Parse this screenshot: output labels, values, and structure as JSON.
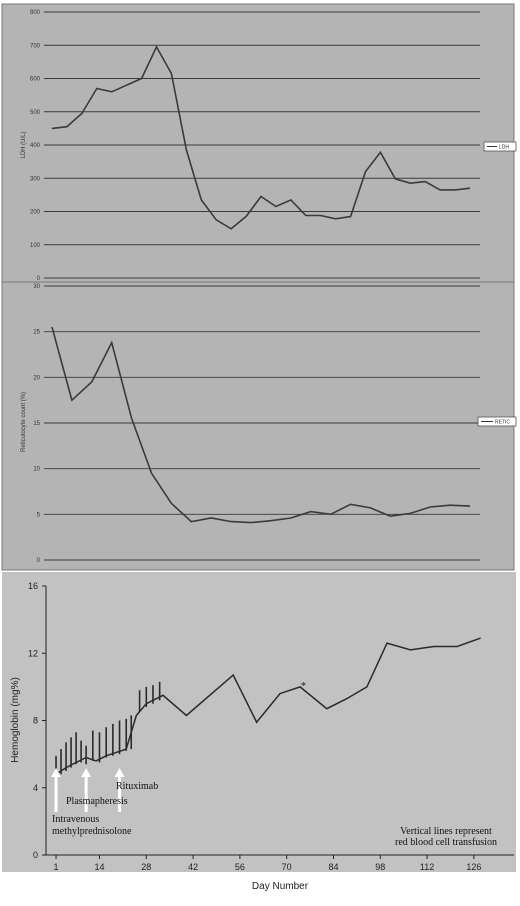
{
  "chart_data": [
    {
      "type": "line",
      "ylabel": "LDH (U/L)",
      "ylim": [
        0,
        800
      ],
      "yticks": [
        "0",
        "100",
        "200",
        "300",
        "400",
        "500",
        "600",
        "700",
        "800"
      ],
      "grid": true,
      "legend": "right",
      "series": [
        {
          "name": "LDH",
          "values": [
            450,
            455,
            495,
            570,
            560,
            580,
            600,
            695,
            615,
            385,
            235,
            175,
            148,
            185,
            245,
            215,
            235,
            188,
            188,
            178,
            185,
            320,
            378,
            298,
            285,
            290,
            265,
            265,
            270
          ]
        }
      ]
    },
    {
      "type": "line",
      "ylabel": "Reticulocyte count (%)",
      "ylim": [
        0,
        30
      ],
      "yticks": [
        "0",
        "5",
        "10",
        "15",
        "20",
        "25",
        "30"
      ],
      "grid": true,
      "legend": "right",
      "series": [
        {
          "name": "RETIC",
          "values": [
            25.5,
            17.5,
            19.5,
            23.8,
            15.5,
            9.5,
            6.2,
            4.2,
            4.6,
            4.2,
            4.1,
            4.3,
            4.6,
            5.3,
            5.0,
            6.1,
            5.7,
            4.8,
            5.1,
            5.8,
            6.0,
            5.9
          ]
        }
      ]
    },
    {
      "type": "line",
      "xlabel": "Day Number",
      "ylabel": "Hemoglobin (mg%)",
      "ylim": [
        0,
        16
      ],
      "yticks": [
        "0",
        "4",
        "8",
        "12",
        "16"
      ],
      "xticks": [
        "1",
        "14",
        "28",
        "42",
        "56",
        "70",
        "84",
        "98",
        "112",
        "126"
      ],
      "xlim": [
        -2,
        138
      ],
      "grid": false,
      "series": [
        {
          "x": [
            1,
            4,
            7,
            10,
            13,
            16,
            19,
            22,
            25,
            28,
            33,
            40,
            54,
            61,
            68,
            74,
            82,
            88,
            94,
            100,
            107,
            114,
            121,
            128
          ],
          "values": [
            4.8,
            5.2,
            5.5,
            5.8,
            5.6,
            5.9,
            6.1,
            6.3,
            8.3,
            9.0,
            9.5,
            8.3,
            10.7,
            7.9,
            9.6,
            10.0,
            8.7,
            9.3,
            10.0,
            12.6,
            12.2,
            12.4,
            12.4,
            12.9
          ]
        }
      ],
      "transfusions": [
        {
          "day": 1,
          "low": 4.6,
          "high": 5.9
        },
        {
          "day": 2.5,
          "low": 4.8,
          "high": 6.3
        },
        {
          "day": 4,
          "low": 5.0,
          "high": 6.7
        },
        {
          "day": 5.5,
          "low": 5.2,
          "high": 7.0
        },
        {
          "day": 7,
          "low": 5.4,
          "high": 7.3
        },
        {
          "day": 8.5,
          "low": 5.5,
          "high": 6.8
        },
        {
          "day": 10,
          "low": 5.4,
          "high": 6.5
        },
        {
          "day": 12,
          "low": 5.6,
          "high": 7.4
        },
        {
          "day": 14,
          "low": 5.5,
          "high": 7.3
        },
        {
          "day": 16,
          "low": 5.8,
          "high": 7.6
        },
        {
          "day": 18,
          "low": 5.9,
          "high": 7.8
        },
        {
          "day": 20,
          "low": 6.0,
          "high": 8.0
        },
        {
          "day": 22,
          "low": 6.2,
          "high": 8.1
        },
        {
          "day": 23.5,
          "low": 6.3,
          "high": 8.3
        },
        {
          "day": 26,
          "low": 8.5,
          "high": 9.8
        },
        {
          "day": 28,
          "low": 8.8,
          "high": 10.0
        },
        {
          "day": 30,
          "low": 9.0,
          "high": 10.1
        },
        {
          "day": 32,
          "low": 9.2,
          "high": 10.3
        }
      ],
      "arrows": [
        {
          "day": 1,
          "label": "Intravenous methylprednisolone"
        },
        {
          "day": 10,
          "label": "Plasmapheresis"
        },
        {
          "day": 20,
          "label": "Rituximab"
        }
      ],
      "star": {
        "day": 75,
        "value": 10.0,
        "label": "*"
      },
      "note": [
        "Vertical lines represent",
        "red blood cell transfusion"
      ]
    }
  ]
}
